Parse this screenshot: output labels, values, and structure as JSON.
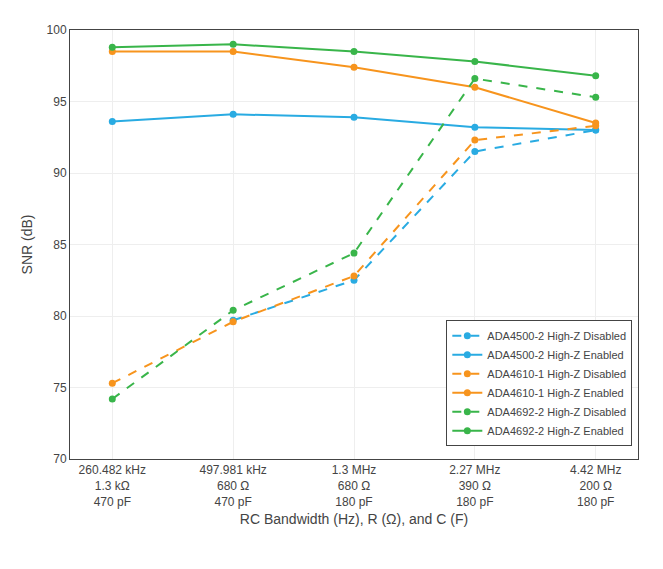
{
  "chart_data": {
    "type": "line",
    "categories": [
      "260.482 kHz\n1.3 kΩ\n470 pF",
      "497.981 kHz\n680 Ω\n470 pF",
      "1.3 MHz\n680 Ω\n180 pF",
      "2.27 MHz\n390 Ω\n180 pF",
      "4.42 MHz\n200 Ω\n180 pF"
    ],
    "series": [
      {
        "name": "ADA4500-2 High-Z Disabled",
        "color": "#29ABE2",
        "line_style": "dashed",
        "marker": "circle",
        "values": [
          null,
          79.7,
          82.5,
          91.5,
          93.0
        ]
      },
      {
        "name": "ADA4500-2 High-Z Enabled",
        "color": "#29ABE2",
        "line_style": "solid",
        "marker": "circle",
        "values": [
          93.6,
          94.1,
          93.9,
          93.2,
          93.0
        ]
      },
      {
        "name": "ADA4610-1 High-Z Disabled",
        "color": "#F7941D",
        "line_style": "dashed",
        "marker": "circle",
        "values": [
          75.3,
          79.6,
          82.8,
          92.3,
          93.3
        ]
      },
      {
        "name": "ADA4610-1 High-Z Enabled",
        "color": "#F7941D",
        "line_style": "solid",
        "marker": "circle",
        "values": [
          98.5,
          98.5,
          97.4,
          96.0,
          93.5
        ]
      },
      {
        "name": "ADA4692-2 High-Z Disabled",
        "color": "#39B54A",
        "line_style": "dashed",
        "marker": "circle",
        "values": [
          74.2,
          80.4,
          84.4,
          96.6,
          95.3
        ]
      },
      {
        "name": "ADA4692-2 High-Z Enabled",
        "color": "#39B54A",
        "line_style": "solid",
        "marker": "circle",
        "values": [
          98.8,
          99.0,
          98.5,
          97.8,
          96.8
        ]
      }
    ],
    "x_label": "RC Bandwidth (Hz), R (Ω), and C (F)",
    "y_label": "SNR (dB)",
    "ylim": [
      70,
      100
    ],
    "yticks": [
      70,
      75,
      80,
      85,
      90,
      95,
      100
    ],
    "grid": true,
    "legend": "lower right"
  }
}
